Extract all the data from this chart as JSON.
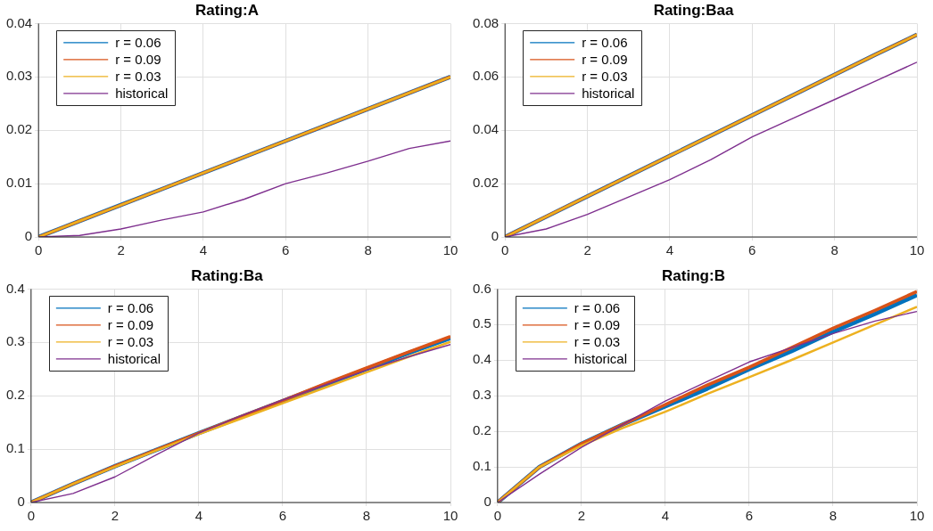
{
  "chart_data": [
    {
      "type": "line",
      "title": "Rating:A",
      "x": [
        0,
        1,
        2,
        3,
        4,
        5,
        6,
        7,
        8,
        9,
        10
      ],
      "xlim": [
        0,
        10
      ],
      "xticks": [
        0,
        2,
        4,
        6,
        8,
        10
      ],
      "ylim": [
        0,
        0.04
      ],
      "yticks": [
        0,
        0.01,
        0.02,
        0.03,
        0.04
      ],
      "grid": true,
      "legend": "top left",
      "series": [
        {
          "name": "r = 0.06",
          "color": "#0072bd",
          "values": [
            0,
            0.003,
            0.006,
            0.009,
            0.012,
            0.015,
            0.018,
            0.021,
            0.024,
            0.027,
            0.03
          ]
        },
        {
          "name": "r = 0.09",
          "color": "#d95319",
          "values": [
            0,
            0.003,
            0.006,
            0.009,
            0.012,
            0.015,
            0.018,
            0.021,
            0.024,
            0.027,
            0.03
          ]
        },
        {
          "name": "r = 0.03",
          "color": "#edb120",
          "values": [
            0,
            0.003,
            0.006,
            0.009,
            0.012,
            0.015,
            0.018,
            0.021,
            0.024,
            0.027,
            0.03
          ]
        },
        {
          "name": "historical",
          "color": "#7e2f8e",
          "values": [
            0,
            0.0003,
            0.0015,
            0.0032,
            0.0047,
            0.0071,
            0.01,
            0.012,
            0.0142,
            0.0166,
            0.018
          ]
        }
      ]
    },
    {
      "type": "line",
      "title": "Rating:Baa",
      "x": [
        0,
        1,
        2,
        3,
        4,
        5,
        6,
        7,
        8,
        9,
        10
      ],
      "xlim": [
        0,
        10
      ],
      "xticks": [
        0,
        2,
        4,
        6,
        8,
        10
      ],
      "ylim": [
        0,
        0.08
      ],
      "yticks": [
        0,
        0.02,
        0.04,
        0.06,
        0.08
      ],
      "grid": true,
      "legend": "top left",
      "series": [
        {
          "name": "r = 0.06",
          "color": "#0072bd",
          "values": [
            0,
            0.0076,
            0.0152,
            0.0228,
            0.0304,
            0.038,
            0.0456,
            0.0532,
            0.0608,
            0.0684,
            0.0758
          ]
        },
        {
          "name": "r = 0.09",
          "color": "#d95319",
          "values": [
            0,
            0.0076,
            0.0152,
            0.0228,
            0.0304,
            0.038,
            0.0456,
            0.0532,
            0.0608,
            0.0684,
            0.0758
          ]
        },
        {
          "name": "r = 0.03",
          "color": "#edb120",
          "values": [
            0,
            0.0076,
            0.0152,
            0.0228,
            0.0304,
            0.038,
            0.0456,
            0.0532,
            0.0608,
            0.0684,
            0.0758
          ]
        },
        {
          "name": "historical",
          "color": "#7e2f8e",
          "values": [
            0,
            0.003,
            0.0085,
            0.015,
            0.0215,
            0.029,
            0.0375,
            0.0445,
            0.0515,
            0.0585,
            0.0655
          ]
        }
      ]
    },
    {
      "type": "line",
      "title": "Rating:Ba",
      "x": [
        0,
        1,
        2,
        3,
        4,
        5,
        6,
        7,
        8,
        9,
        10
      ],
      "xlim": [
        0,
        10
      ],
      "xticks": [
        0,
        2,
        4,
        6,
        8,
        10
      ],
      "ylim": [
        0,
        0.4
      ],
      "yticks": [
        0,
        0.1,
        0.2,
        0.3,
        0.4
      ],
      "grid": true,
      "legend": "top left",
      "series": [
        {
          "name": "r = 0.06",
          "color": "#0072bd",
          "values": [
            0,
            0.035,
            0.068,
            0.099,
            0.13,
            0.16,
            0.19,
            0.22,
            0.25,
            0.28,
            0.308
          ]
        },
        {
          "name": "r = 0.09",
          "color": "#d95319",
          "values": [
            0,
            0.035,
            0.068,
            0.099,
            0.13,
            0.161,
            0.191,
            0.222,
            0.252,
            0.282,
            0.311
          ]
        },
        {
          "name": "r = 0.03",
          "color": "#edb120",
          "values": [
            0,
            0.035,
            0.067,
            0.098,
            0.128,
            0.157,
            0.186,
            0.215,
            0.244,
            0.273,
            0.301
          ]
        },
        {
          "name": "historical",
          "color": "#7e2f8e",
          "values": [
            0,
            0.017,
            0.048,
            0.09,
            0.13,
            0.162,
            0.192,
            0.22,
            0.248,
            0.273,
            0.296
          ]
        }
      ]
    },
    {
      "type": "line",
      "title": "Rating:B",
      "x": [
        0,
        1,
        2,
        3,
        4,
        5,
        6,
        7,
        8,
        9,
        10
      ],
      "xlim": [
        0,
        10
      ],
      "xticks": [
        0,
        2,
        4,
        6,
        8,
        10
      ],
      "ylim": [
        0,
        0.6
      ],
      "yticks": [
        0,
        0.1,
        0.2,
        0.3,
        0.4,
        0.5,
        0.6
      ],
      "grid": true,
      "legend": "top left",
      "series": [
        {
          "name": "r = 0.06",
          "color": "#0072bd",
          "values": [
            0,
            0.1,
            0.165,
            0.22,
            0.27,
            0.32,
            0.375,
            0.425,
            0.48,
            0.53,
            0.583
          ]
        },
        {
          "name": "r = 0.09",
          "color": "#d95319",
          "values": [
            0,
            0.1,
            0.165,
            0.22,
            0.275,
            0.33,
            0.38,
            0.435,
            0.49,
            0.54,
            0.593
          ]
        },
        {
          "name": "r = 0.03",
          "color": "#edb120",
          "values": [
            0,
            0.1,
            0.16,
            0.21,
            0.255,
            0.305,
            0.352,
            0.4,
            0.45,
            0.5,
            0.55
          ]
        },
        {
          "name": "historical",
          "color": "#7e2f8e",
          "values": [
            0,
            0.08,
            0.155,
            0.22,
            0.285,
            0.34,
            0.395,
            0.435,
            0.475,
            0.51,
            0.537
          ]
        }
      ]
    }
  ]
}
